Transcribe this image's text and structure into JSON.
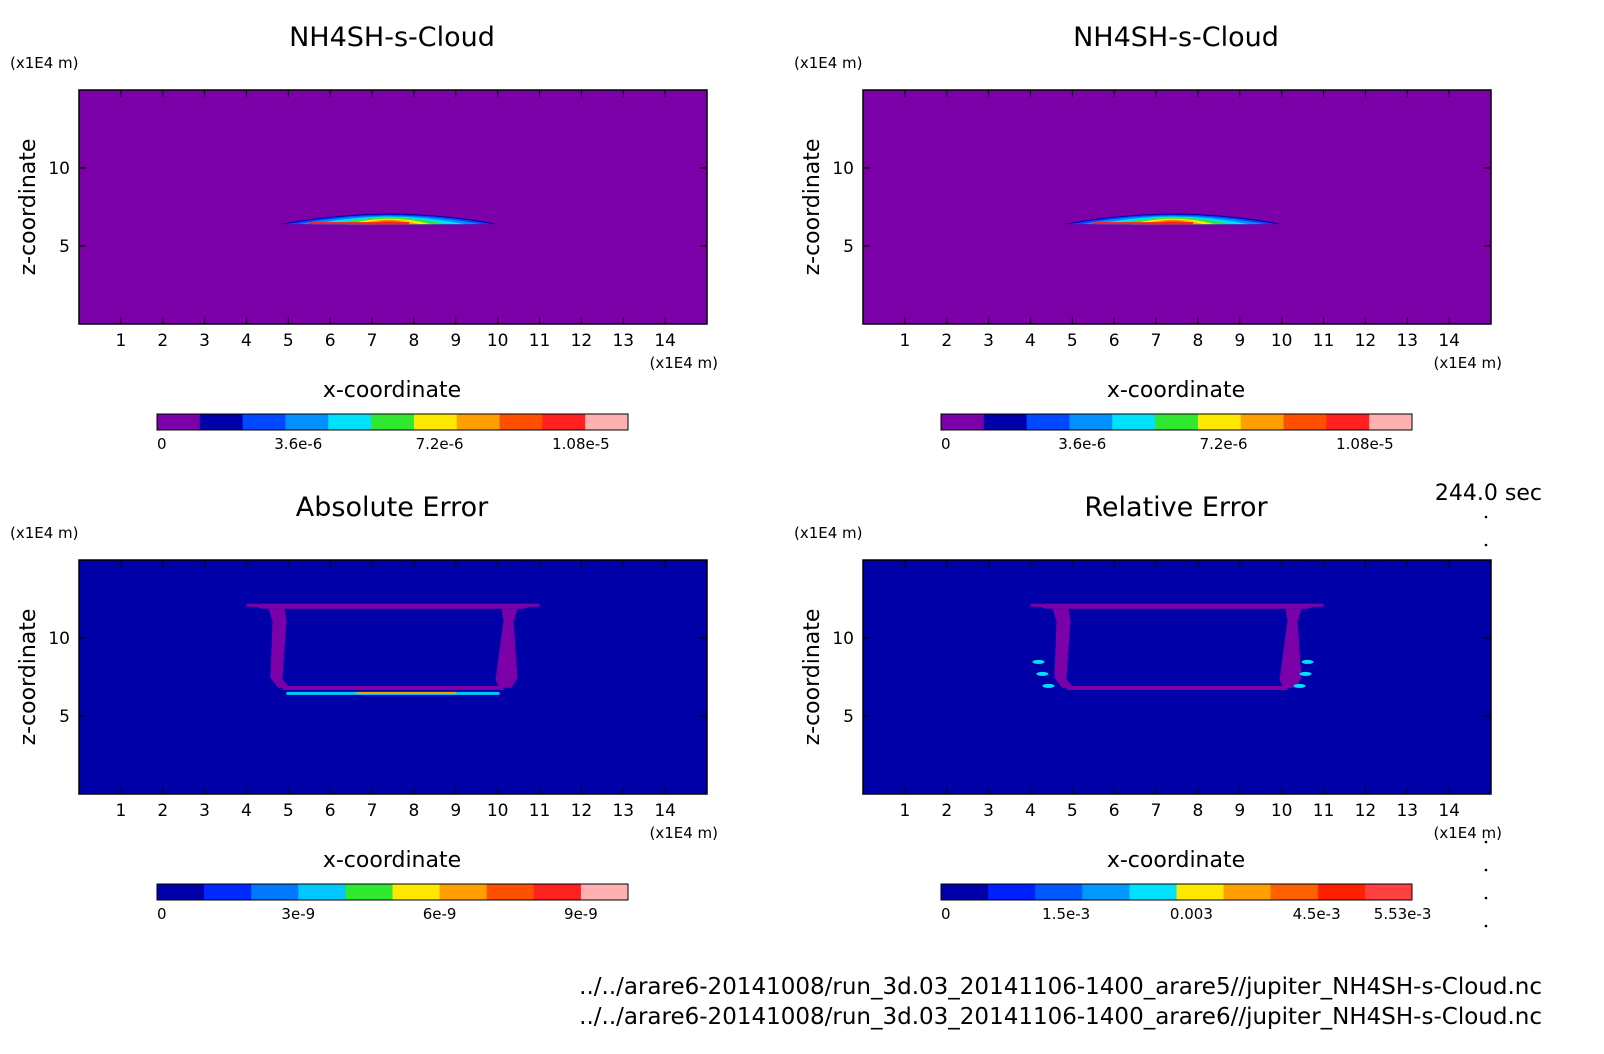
{
  "time_label": "244.0 sec",
  "files": [
    "../../arare6-20141008/run_3d.03_20141106-1400_arare5//jupiter_NH4SH-s-Cloud.nc",
    "../../arare6-20141008/run_3d.03_20141106-1400_arare6//jupiter_NH4SH-s-Cloud.nc"
  ],
  "colors": {
    "purple": "#7b00a8",
    "navy": "#0000b4",
    "bg_error": "#0000c8"
  },
  "chart_data": [
    {
      "type": "heatmap",
      "title": "NH4SH-s-Cloud",
      "xlabel": "x-coordinate",
      "ylabel": "z-coordinate",
      "x_unit": "(x1E4 m)",
      "y_unit": "(x1E4 m)",
      "xlim": [
        0,
        15
      ],
      "ylim": [
        0,
        15
      ],
      "xticks": [
        "1",
        "2",
        "3",
        "4",
        "5",
        "6",
        "7",
        "8",
        "9",
        "10",
        "11",
        "12",
        "13",
        "14"
      ],
      "yticks": [
        "5",
        "10"
      ],
      "cloud": {
        "x_range": [
          5,
          10
        ],
        "z_center": 6.4
      },
      "colorbar": {
        "labels": [
          "0",
          "3.6e-6",
          "7.2e-6",
          "1.08e-5"
        ],
        "label_values": [
          0,
          3.6e-06,
          7.2e-06,
          1.08e-05
        ],
        "max": 1.2e-05,
        "colors": [
          "#7b00a8",
          "#0000a8",
          "#0048ff",
          "#0090ff",
          "#00e0ff",
          "#30e830",
          "#ffe800",
          "#ffa000",
          "#ff5000",
          "#ff2020",
          "#ffb0b0"
        ]
      }
    },
    {
      "type": "heatmap",
      "title": "NH4SH-s-Cloud",
      "xlabel": "x-coordinate",
      "ylabel": "z-coordinate",
      "x_unit": "(x1E4 m)",
      "y_unit": "(x1E4 m)",
      "xlim": [
        0,
        15
      ],
      "ylim": [
        0,
        15
      ],
      "xticks": [
        "1",
        "2",
        "3",
        "4",
        "5",
        "6",
        "7",
        "8",
        "9",
        "10",
        "11",
        "12",
        "13",
        "14"
      ],
      "yticks": [
        "5",
        "10"
      ],
      "cloud": {
        "x_range": [
          5,
          10
        ],
        "z_center": 6.4
      },
      "colorbar": {
        "labels": [
          "0",
          "3.6e-6",
          "7.2e-6",
          "1.08e-5"
        ],
        "label_values": [
          0,
          3.6e-06,
          7.2e-06,
          1.08e-05
        ],
        "max": 1.2e-05,
        "colors": [
          "#7b00a8",
          "#0000a8",
          "#0048ff",
          "#0090ff",
          "#00e0ff",
          "#30e830",
          "#ffe800",
          "#ffa000",
          "#ff5000",
          "#ff2020",
          "#ffb0b0"
        ]
      }
    },
    {
      "type": "heatmap",
      "title": "Absolute Error",
      "xlabel": "x-coordinate",
      "ylabel": "z-coordinate",
      "x_unit": "(x1E4 m)",
      "y_unit": "(x1E4 m)",
      "xlim": [
        0,
        15
      ],
      "ylim": [
        0,
        15
      ],
      "xticks": [
        "1",
        "2",
        "3",
        "4",
        "5",
        "6",
        "7",
        "8",
        "9",
        "10",
        "11",
        "12",
        "13",
        "14"
      ],
      "yticks": [
        "5",
        "10"
      ],
      "frame": {
        "x_range": [
          4,
          11
        ],
        "z_top": 12,
        "z_bottom": 6.8
      },
      "colorbar": {
        "labels": [
          "0",
          "3e-9",
          "6e-9",
          "9e-9"
        ],
        "label_values": [
          0,
          3e-09,
          6e-09,
          9e-09
        ],
        "max": 1e-08,
        "colors": [
          "#0000a8",
          "#0028ff",
          "#0078ff",
          "#00c8ff",
          "#30e830",
          "#ffe800",
          "#ffa000",
          "#ff5000",
          "#ff2020",
          "#ffb0b0"
        ]
      }
    },
    {
      "type": "heatmap",
      "title": "Relative Error",
      "xlabel": "x-coordinate",
      "ylabel": "z-coordinate",
      "x_unit": "(x1E4 m)",
      "y_unit": "(x1E4 m)",
      "xlim": [
        0,
        15
      ],
      "ylim": [
        0,
        15
      ],
      "xticks": [
        "1",
        "2",
        "3",
        "4",
        "5",
        "6",
        "7",
        "8",
        "9",
        "10",
        "11",
        "12",
        "13",
        "14"
      ],
      "yticks": [
        "5",
        "10"
      ],
      "frame": {
        "x_range": [
          4,
          11
        ],
        "z_top": 12,
        "z_bottom": 6.8
      },
      "colorbar": {
        "labels": [
          "0",
          "1.5e-3",
          "0.003",
          "4.5e-3",
          "5.53e-3"
        ],
        "label_values": [
          0,
          0.0015,
          0.003,
          0.0045,
          0.00553
        ],
        "max": 0.00553,
        "colors": [
          "#0000a8",
          "#0020ff",
          "#0058ff",
          "#0098ff",
          "#00e0ff",
          "#ffe800",
          "#ffa000",
          "#ff6000",
          "#ff2000",
          "#ff4040"
        ]
      }
    }
  ]
}
